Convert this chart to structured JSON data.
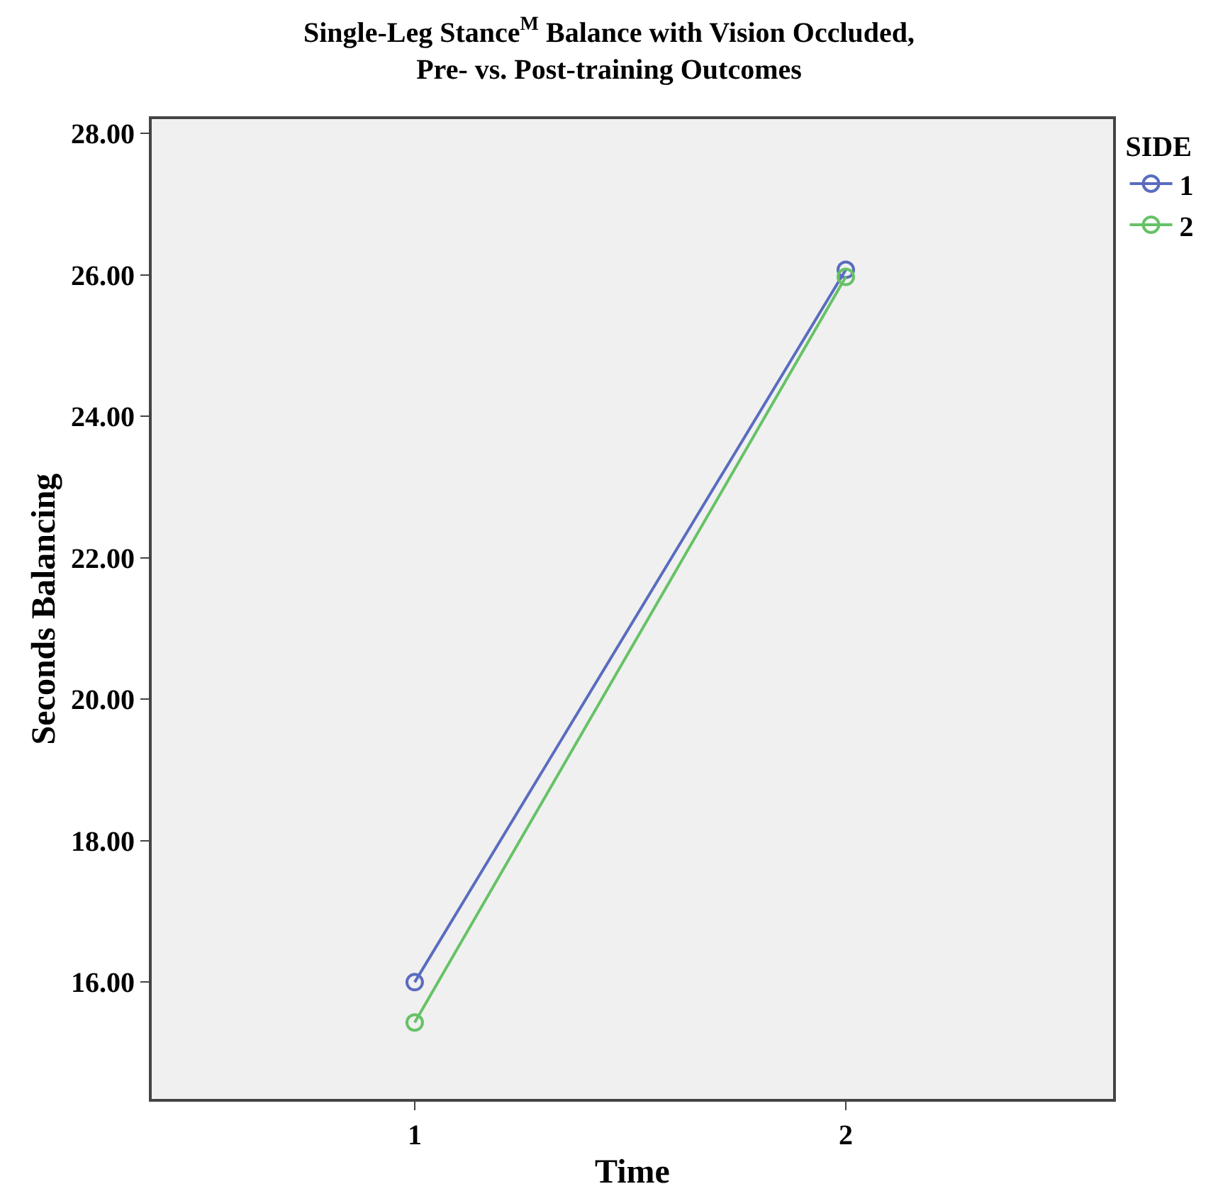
{
  "chart_data": {
    "type": "line",
    "title": "Single-Leg Stance$^{M}$ Balance with Vision Occluded,\nPre- vs. Post-training Outcomes",
    "xlabel": "Time",
    "ylabel": "Seconds Balancing",
    "legend_title": "SIDE",
    "categories": [
      "1",
      "2"
    ],
    "series": [
      {
        "name": "1",
        "color": "#5a6cbf",
        "values": [
          16.0,
          26.07
        ]
      },
      {
        "name": "2",
        "color": "#66c266",
        "values": [
          15.43,
          25.97
        ]
      }
    ],
    "ylim": [
      14.35,
      28.2
    ],
    "yticks": [
      {
        "value": 16,
        "label": "16.00"
      },
      {
        "value": 18,
        "label": "18.00"
      },
      {
        "value": 20,
        "label": "20.00"
      },
      {
        "value": 22,
        "label": "22.00"
      },
      {
        "value": 24,
        "label": "24.00"
      },
      {
        "value": 26,
        "label": "26.00"
      },
      {
        "value": 28,
        "label": "28.00"
      }
    ],
    "marker": "circle",
    "line_style": "solid",
    "grid": false,
    "legend": "top right"
  }
}
